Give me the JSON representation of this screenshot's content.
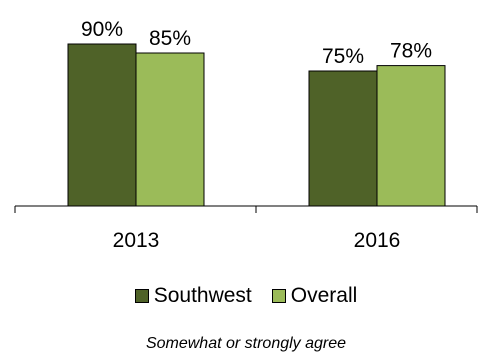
{
  "chart_data": {
    "type": "bar",
    "categories": [
      "2013",
      "2016"
    ],
    "series": [
      {
        "name": "Southwest",
        "values": [
          90,
          75
        ],
        "labels": [
          "90%",
          "75%"
        ],
        "color": "#4f6228"
      },
      {
        "name": "Overall",
        "values": [
          85,
          78
        ],
        "labels": [
          "85%",
          "78%"
        ],
        "color": "#9bbb59"
      }
    ],
    "ylim": [
      0,
      100
    ],
    "grid": false,
    "legend_position": "bottom",
    "caption": "Somewhat or strongly agree"
  }
}
